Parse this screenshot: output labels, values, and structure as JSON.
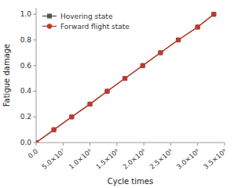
{
  "chart_data": {
    "type": "line",
    "xlabel": "Cycle times",
    "ylabel": "Fatigue damage",
    "x": [
      0,
      33000000.0,
      66000000.0,
      100000000.0,
      132000000.0,
      165000000.0,
      198000000.0,
      231000000.0,
      264000000.0,
      300000000.0,
      330000000.0
    ],
    "series": [
      {
        "name": "Hovering state",
        "color": "#555555",
        "marker": "square",
        "values": [
          0.0,
          0.1,
          0.2,
          0.3,
          0.4,
          0.5,
          0.6,
          0.7,
          0.8,
          0.9,
          1.0
        ]
      },
      {
        "name": "Forward flight state",
        "color": "#c0392b",
        "marker": "circle",
        "values": [
          0.0,
          0.1,
          0.2,
          0.3,
          0.4,
          0.5,
          0.6,
          0.7,
          0.8,
          0.9,
          1.0
        ]
      }
    ],
    "xlim": [
      0,
      350000000.0
    ],
    "ylim": [
      0.0,
      1.05
    ],
    "xticks": [
      {
        "value": 0.0,
        "label": "0.0"
      },
      {
        "value": 50000000.0,
        "label": "5.0×10⁷"
      },
      {
        "value": 100000000.0,
        "label": "1.0×10⁸"
      },
      {
        "value": 150000000.0,
        "label": "1.5×10⁸"
      },
      {
        "value": 200000000.0,
        "label": "2.0×10⁸"
      },
      {
        "value": 250000000.0,
        "label": "2.5×10⁸"
      },
      {
        "value": 300000000.0,
        "label": "3.0×10⁸"
      },
      {
        "value": 350000000.0,
        "label": "3.5×10⁸"
      }
    ],
    "yticks": [
      {
        "value": 0.0,
        "label": "0.0"
      },
      0.2,
      0.4,
      0.6,
      0.8,
      {
        "value": 1.0,
        "label": "1.0"
      }
    ],
    "legend": "upper left",
    "grid": false
  }
}
